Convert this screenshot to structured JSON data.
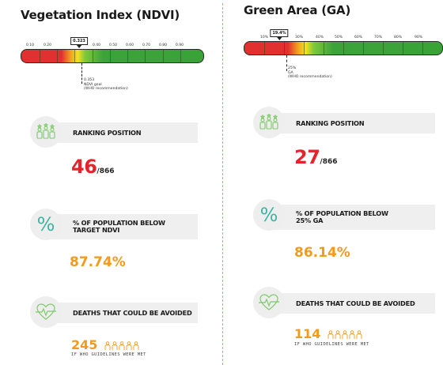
{
  "left": {
    "title": "Vegetation Index (NDVI)",
    "ticks": [
      "0.10",
      "0.20",
      "",
      "0.40",
      "0.50",
      "0.60",
      "0.70",
      "0.80",
      "0.90"
    ],
    "marker": "0.323",
    "goal_value": "0.353",
    "goal_label": "NDVI goal",
    "goal_note": "(WHO recommendation)",
    "ranking_label": "RANKING POSITION",
    "ranking_value": "46",
    "ranking_total": "/866",
    "population_label_1": "% OF POPULATION BELOW",
    "population_label_2": "TARGET NDVI",
    "population_value": "87.74%",
    "deaths_label": "DEATHS THAT COULD BE AVOIDED",
    "deaths_value": "245",
    "deaths_note": "IF WHO GUIDELINES WERE MET"
  },
  "right": {
    "title": "Green Area (GA)",
    "ticks": [
      "10%",
      "",
      "30%",
      "40%",
      "50%",
      "60%",
      "70%",
      "80%",
      "90%"
    ],
    "marker": "19.4%",
    "goal_value": "25%",
    "goal_label": "GA",
    "goal_note": "(WHO recommendation)",
    "ranking_label": "RANKING POSITION",
    "ranking_value": "27",
    "ranking_total": "/866",
    "population_label_1": "% OF POPULATION BELOW",
    "population_label_2": "25% GA",
    "population_value": "86.14%",
    "deaths_label": "DEATHS THAT COULD BE AVOIDED",
    "deaths_value": "114",
    "deaths_note": "IF WHO GUIDELINES WERE MET"
  },
  "colors": {
    "red": "#e3242b",
    "orange": "#f39a1a",
    "green_icon": "#7dcb6a",
    "teal_icon": "#3fb3a4",
    "divider": "#e8a33a"
  },
  "icons": [
    "people-ranking-icon",
    "percent-icon",
    "heart-pulse-icon",
    "person-outline-icon"
  ]
}
